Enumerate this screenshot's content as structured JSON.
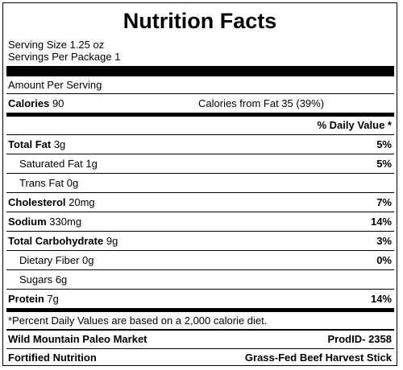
{
  "title": "Nutrition Facts",
  "serving": {
    "size": "Serving Size 1.25 oz",
    "per_package": "Servings Per Package 1"
  },
  "amount_per_serving": "Amount Per Serving",
  "calories": {
    "label": "Calories",
    "value": "90",
    "from_fat": "Calories from Fat 35 (39%)"
  },
  "dv_header": "% Daily Value *",
  "nutrients": {
    "total_fat": {
      "label": "Total Fat",
      "amount": "3g",
      "dv": "5%"
    },
    "saturated_fat": {
      "label": "Saturated Fat",
      "amount": "1g",
      "dv": "5%"
    },
    "trans_fat": {
      "label": "Trans Fat",
      "amount": "0g"
    },
    "cholesterol": {
      "label": "Cholesterol",
      "amount": "20mg",
      "dv": "7%"
    },
    "sodium": {
      "label": "Sodium",
      "amount": "330mg",
      "dv": "14%"
    },
    "total_carbohydrate": {
      "label": "Total Carbohydrate",
      "amount": "9g",
      "dv": "3%"
    },
    "dietary_fiber": {
      "label": "Dietary Fiber",
      "amount": "0g",
      "dv": "0%"
    },
    "sugars": {
      "label": "Sugars",
      "amount": "6g"
    },
    "protein": {
      "label": "Protein",
      "amount": "7g",
      "dv": "14%"
    }
  },
  "footnote": "*Percent Daily Values are based on a 2,000 calorie diet.",
  "footer": {
    "brand": "Wild Mountain Paleo Market",
    "prod_id": "ProdID- 2358",
    "company": "Fortified Nutrition",
    "product": "Grass-Fed Beef Harvest Stick"
  }
}
